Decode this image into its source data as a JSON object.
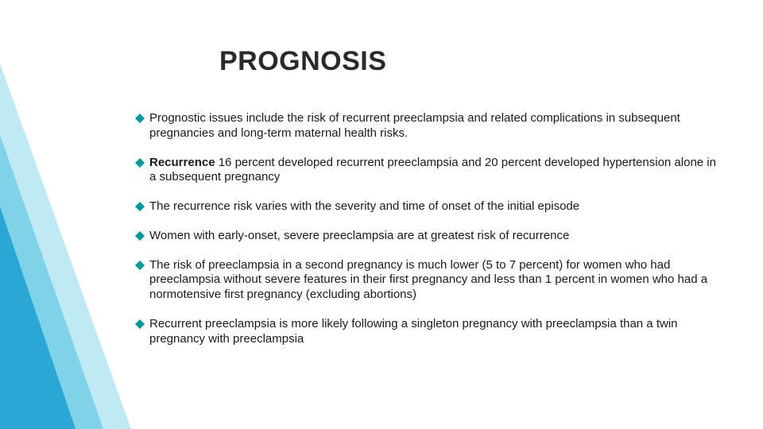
{
  "title": "PROGNOSIS",
  "accent": {
    "color_main": "#2aa7d4",
    "color_light": "#7fd2e8",
    "color_pale": "#bfe9f3"
  },
  "bullet": {
    "fill": "#009999",
    "size": 12
  },
  "text_color": "#1a1a1a",
  "title_fontsize": 34,
  "body_fontsize": 15,
  "items": [
    {
      "bold": "",
      "rest": "Prognostic issues include the risk of recurrent preeclampsia and related complications in subsequent pregnancies and long-term maternal health risks."
    },
    {
      "bold": "Recurrence",
      "rest": "  16 percent developed recurrent preeclampsia and 20 percent developed hypertension alone in a subsequent pregnancy"
    },
    {
      "bold": "",
      "rest": "The recurrence risk varies with the severity and time of onset of the initial episode"
    },
    {
      "bold": "",
      "rest": "Women with early-onset, severe preeclampsia are at greatest risk of recurrence"
    },
    {
      "bold": "",
      "rest": "The risk of preeclampsia in a second pregnancy is much lower (5 to 7 percent) for women who had preeclampsia without severe features in their first pregnancy and less than 1 percent in women who had a normotensive first pregnancy (excluding abortions)"
    },
    {
      "bold": "",
      "rest": "Recurrent preeclampsia is more likely following a singleton pregnancy with preeclampsia than a twin pregnancy with preeclampsia"
    }
  ]
}
